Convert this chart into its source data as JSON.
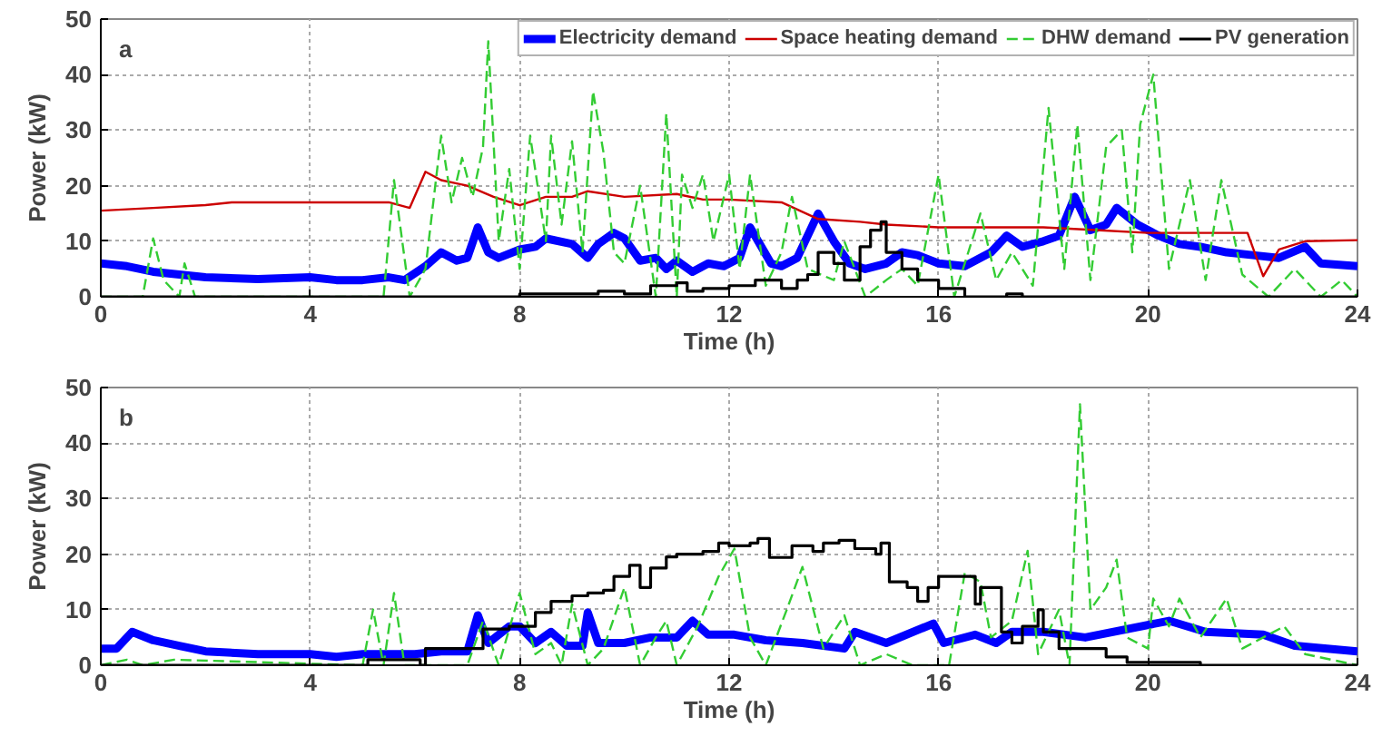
{
  "chart_data": [
    {
      "type": "line",
      "xlabel": "Time (h)",
      "ylabel": "Power (kW)",
      "annotations": [
        "a"
      ],
      "xlim": [
        0,
        24
      ],
      "ylim": [
        0,
        50
      ],
      "xticks": [
        0,
        4,
        8,
        12,
        16,
        20,
        24
      ],
      "yticks": [
        0,
        10,
        20,
        30,
        40,
        50
      ],
      "grid": true,
      "legend": "top",
      "series": [
        {
          "name": "Electricity demand",
          "color": "#0000ff",
          "x": [
            0,
            0.5,
            1,
            2,
            3,
            4,
            4.5,
            5,
            5.5,
            5.8,
            6.2,
            6.5,
            6.8,
            7,
            7.2,
            7.4,
            7.6,
            8,
            8.3,
            8.5,
            9,
            9.3,
            9.5,
            9.8,
            10,
            10.3,
            10.6,
            10.8,
            11,
            11.3,
            11.6,
            11.9,
            12.2,
            12.4,
            12.8,
            13,
            13.3,
            13.7,
            14,
            14.3,
            14.6,
            15,
            15.3,
            15.6,
            16,
            16.5,
            17,
            17.3,
            17.6,
            18,
            18.3,
            18.6,
            18.9,
            19.2,
            19.4,
            19.8,
            20.2,
            20.6,
            21,
            21.5,
            22,
            22.5,
            23,
            23.3,
            24
          ],
          "values": [
            6,
            5.5,
            4.5,
            3.5,
            3.2,
            3.5,
            3,
            3,
            3.5,
            3,
            5.5,
            8,
            6.5,
            7,
            12.5,
            8,
            7,
            8.5,
            9,
            10.5,
            9.5,
            7,
            9.5,
            11.5,
            10.5,
            6.5,
            7,
            5,
            6.5,
            4.5,
            6,
            5.5,
            7,
            12.5,
            6,
            5.5,
            7,
            15,
            10,
            6,
            5,
            6,
            8,
            7.5,
            6,
            5.5,
            8,
            11,
            9,
            10,
            11,
            18,
            12,
            13,
            16,
            13,
            11,
            9.5,
            9,
            8,
            7.5,
            7,
            9,
            6,
            5.5
          ]
        },
        {
          "name": "Space heating demand",
          "color": "#cc0000",
          "x": [
            0,
            1,
            2,
            2.5,
            4,
            5,
            5.5,
            5.9,
            6.2,
            6.5,
            7,
            7.5,
            8,
            8.5,
            9,
            9.3,
            10,
            11,
            11.5,
            12,
            13,
            13.7,
            14.5,
            15,
            16,
            17,
            18,
            19,
            20,
            21,
            21.9,
            22.2,
            22.5,
            23,
            24
          ],
          "values": [
            15.5,
            16,
            16.5,
            17,
            17,
            17,
            17,
            16,
            22.5,
            21,
            20,
            18,
            16.5,
            18,
            18,
            19,
            18,
            18.5,
            17.5,
            17.5,
            17,
            14,
            13.5,
            13,
            12.5,
            12.5,
            12.5,
            12,
            11.5,
            11.5,
            11.5,
            3.7,
            8.5,
            10,
            10.2
          ]
        },
        {
          "name": "DHW demand",
          "color": "#33cc33",
          "line_style": "dashed",
          "x": [
            0,
            0.8,
            1,
            1.2,
            1.5,
            1.6,
            1.8,
            5.4,
            5.6,
            5.9,
            6.2,
            6.5,
            6.7,
            6.9,
            7.1,
            7.3,
            7.4,
            7.6,
            7.8,
            8,
            8.2,
            8.5,
            8.6,
            8.8,
            9,
            9.2,
            9.4,
            9.6,
            9.8,
            10,
            10.3,
            10.6,
            10.8,
            11,
            11.1,
            11.3,
            11.5,
            11.7,
            12,
            12.2,
            12.4,
            12.7,
            13,
            13.2,
            13.5,
            14,
            14.2,
            14.6,
            15,
            15.3,
            15.6,
            16,
            16.3,
            16.8,
            17.1,
            17.4,
            17.8,
            18.1,
            18.4,
            18.65,
            18.9,
            19.2,
            19.5,
            19.7,
            19.85,
            20.1,
            20.4,
            20.8,
            21.1,
            21.4,
            21.8,
            22.3,
            22.8,
            23.3,
            23.7,
            24
          ],
          "values": [
            0,
            0,
            10.5,
            3,
            0,
            6,
            0,
            0,
            21,
            0,
            5,
            29,
            17,
            25,
            18,
            27,
            46,
            10,
            23,
            5,
            29,
            10,
            29,
            13,
            28,
            8,
            37,
            26,
            8,
            6,
            20,
            0,
            33,
            0,
            22,
            16,
            22,
            10,
            22,
            5,
            22,
            2,
            8,
            18,
            5,
            3,
            10,
            0,
            3,
            5,
            2,
            22,
            0,
            15,
            3,
            8,
            2,
            34,
            5,
            31,
            3,
            27,
            30,
            8,
            31,
            40,
            5,
            21,
            3,
            21,
            4,
            0,
            5,
            0,
            3,
            0
          ]
        },
        {
          "name": "PV generation",
          "color": "#000000",
          "type": "step",
          "x": [
            0,
            7.5,
            8,
            9,
            9.5,
            10,
            10.5,
            11,
            11.2,
            11.5,
            12,
            12.5,
            13,
            13.3,
            13.5,
            13.7,
            14,
            14.2,
            14.5,
            14.7,
            14.9,
            15,
            15.3,
            15.6,
            16,
            16.5,
            17.3,
            17.6,
            24
          ],
          "values": [
            0,
            0,
            0.5,
            0.5,
            1,
            0.5,
            2,
            2.5,
            1,
            1.5,
            2,
            3,
            1.5,
            3,
            4,
            8,
            6,
            3,
            9,
            12,
            13.5,
            8,
            5,
            3,
            1.5,
            0,
            0.5,
            0,
            0
          ]
        }
      ]
    },
    {
      "type": "line",
      "xlabel": "Time (h)",
      "ylabel": "Power (kW)",
      "annotations": [
        "b"
      ],
      "xlim": [
        0,
        24
      ],
      "ylim": [
        0,
        50
      ],
      "xticks": [
        0,
        4,
        8,
        12,
        16,
        20,
        24
      ],
      "yticks": [
        0,
        10,
        20,
        30,
        40,
        50
      ],
      "grid": true,
      "series": [
        {
          "color": "#0000ff",
          "x": [
            0,
            0.3,
            0.6,
            1,
            1.5,
            2,
            3,
            4,
            4.5,
            5,
            5.5,
            6,
            6.5,
            7,
            7.2,
            7.4,
            7.8,
            8,
            8.3,
            8.6,
            8.9,
            9.2,
            9.3,
            9.5,
            10,
            10.5,
            11,
            11.3,
            11.6,
            12.1,
            12.7,
            13.4,
            14.2,
            14.4,
            15,
            15.9,
            16.1,
            16.7,
            17.1,
            17.4,
            18,
            18.8,
            20.4,
            21.1,
            22.2,
            22.8,
            24
          ],
          "values": [
            3,
            3,
            6,
            4.5,
            3.5,
            2.5,
            2,
            2,
            1.5,
            2,
            2,
            2,
            2.5,
            2.5,
            9,
            4,
            7,
            7,
            4,
            6,
            3.5,
            3.5,
            9.5,
            4,
            4,
            5,
            5,
            8,
            5.5,
            5.5,
            4.5,
            4,
            3,
            6,
            4,
            7.5,
            4,
            5.5,
            4,
            6,
            6,
            5,
            8,
            6,
            5.5,
            3.5,
            2.5
          ]
        },
        {
          "color": "#33cc33",
          "line_style": "dashed",
          "x": [
            0,
            0.5,
            0.8,
            1.4,
            5,
            5.2,
            5.4,
            5.6,
            5.8,
            7,
            7.3,
            7.6,
            8,
            8.3,
            8.6,
            8.8,
            9,
            9.3,
            9.6,
            10,
            10.3,
            10.6,
            10.8,
            11,
            11.4,
            11.8,
            12.1,
            12.4,
            12.7,
            13.1,
            13.4,
            13.8,
            14.2,
            14.5,
            15,
            15.5,
            16.2,
            16.5,
            16.8,
            17,
            17.4,
            17.7,
            17.9,
            18.3,
            18.5,
            18.7,
            18.9,
            19.2,
            19.4,
            19.6,
            20,
            20.1,
            20.4,
            20.6,
            21,
            21.5,
            21.8,
            22.2,
            22.6,
            23,
            24
          ],
          "values": [
            0,
            1,
            0,
            1,
            0,
            10,
            0,
            13,
            0,
            0,
            8,
            0,
            13,
            2,
            4,
            0,
            11,
            0,
            3,
            14,
            0,
            5,
            8,
            0,
            7,
            16,
            21,
            5,
            0,
            10,
            17.7,
            3,
            9,
            0,
            2,
            0,
            0,
            16.6,
            15,
            5,
            8,
            20.6,
            2,
            10,
            0,
            47,
            10,
            14,
            19,
            5,
            3,
            12,
            7,
            12,
            5,
            12,
            3,
            5,
            7,
            2,
            0
          ]
        },
        {
          "color": "#000000",
          "type": "step",
          "x": [
            0,
            5.1,
            6.1,
            6.2,
            7.3,
            7.8,
            8.3,
            8.6,
            9,
            9.3,
            9.6,
            9.8,
            10.1,
            10.3,
            10.5,
            10.8,
            11,
            11.5,
            11.8,
            12,
            12.4,
            12.55,
            12.77,
            13.2,
            13.6,
            13.8,
            14.1,
            14.4,
            14.8,
            14.9,
            15.06,
            15.4,
            15.6,
            15.8,
            16,
            16.6,
            16.7,
            16.8,
            17.2,
            17.4,
            17.6,
            17.9,
            18,
            18.3,
            19.2,
            19.6,
            21,
            24
          ],
          "values": [
            0,
            1,
            0,
            3,
            6.5,
            7,
            9.5,
            11.5,
            12.5,
            13,
            13.5,
            16,
            18,
            14,
            17.5,
            19.5,
            20,
            20.5,
            22,
            21.5,
            22,
            22.8,
            19.4,
            21.5,
            20.5,
            22,
            22.5,
            21,
            20,
            22,
            15,
            14,
            11.5,
            14,
            16,
            16,
            11,
            14,
            6,
            4,
            7,
            10,
            6,
            3,
            1.5,
            0.5,
            0,
            0
          ]
        }
      ]
    }
  ]
}
